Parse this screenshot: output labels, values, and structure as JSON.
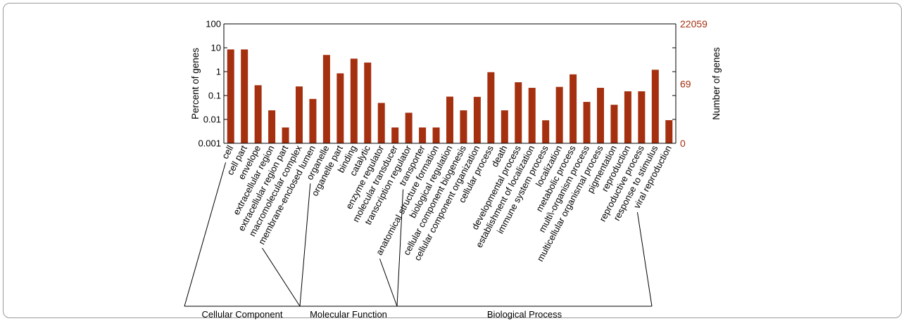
{
  "colors": {
    "bar": "#a53010",
    "right_axis": "#a53010",
    "axis": "#000000"
  },
  "chart_data": {
    "type": "bar",
    "categories": [
      "cell",
      "cell part",
      "envelope",
      "extracellular region",
      "extracellular region part",
      "macromolecular complex",
      "membrane-enclosed lumen",
      "organelle",
      "organelle part",
      "binding",
      "catalytic",
      "enzyme regulator",
      "molecular transducer",
      "transcription regulator",
      "transporter",
      "anatomical structure formation",
      "biological regulation",
      "cellular component biogenesis",
      "cellular component organization",
      "cellular process",
      "death",
      "developmental process",
      "establishment of localization",
      "immune system process",
      "localization",
      "metabolic process",
      "multi\\-organism process",
      "multicellular organismal process",
      "pigmentation",
      "reproduction",
      "reproductive process",
      "response to stimulus",
      "viral reproduction"
    ],
    "values": [
      8.5,
      8.5,
      0.27,
      0.024,
      0.0046,
      0.24,
      0.072,
      5.0,
      0.85,
      3.5,
      2.4,
      0.049,
      0.0046,
      0.019,
      0.0046,
      0.0046,
      0.09,
      0.024,
      0.088,
      0.95,
      0.024,
      0.36,
      0.21,
      0.0092,
      0.23,
      0.77,
      0.054,
      0.21,
      0.041,
      0.15,
      0.15,
      1.2,
      0.0093
    ],
    "ylabel": "Percent of genes",
    "ylabel_right": "Number of genes",
    "yscale": "log",
    "ylim": [
      0.001,
      100
    ],
    "yticks": [
      "100",
      "10",
      "1",
      "0.1",
      "0.01",
      "0.001"
    ],
    "right_ticks": [
      "22059",
      "69",
      "0"
    ],
    "groups": [
      {
        "name": "Cellular Component",
        "start": 0,
        "end": 6
      },
      {
        "name": "Molecular Function",
        "start": 7,
        "end": 14
      },
      {
        "name": "Biological Process",
        "start": 15,
        "end": 32
      }
    ]
  }
}
